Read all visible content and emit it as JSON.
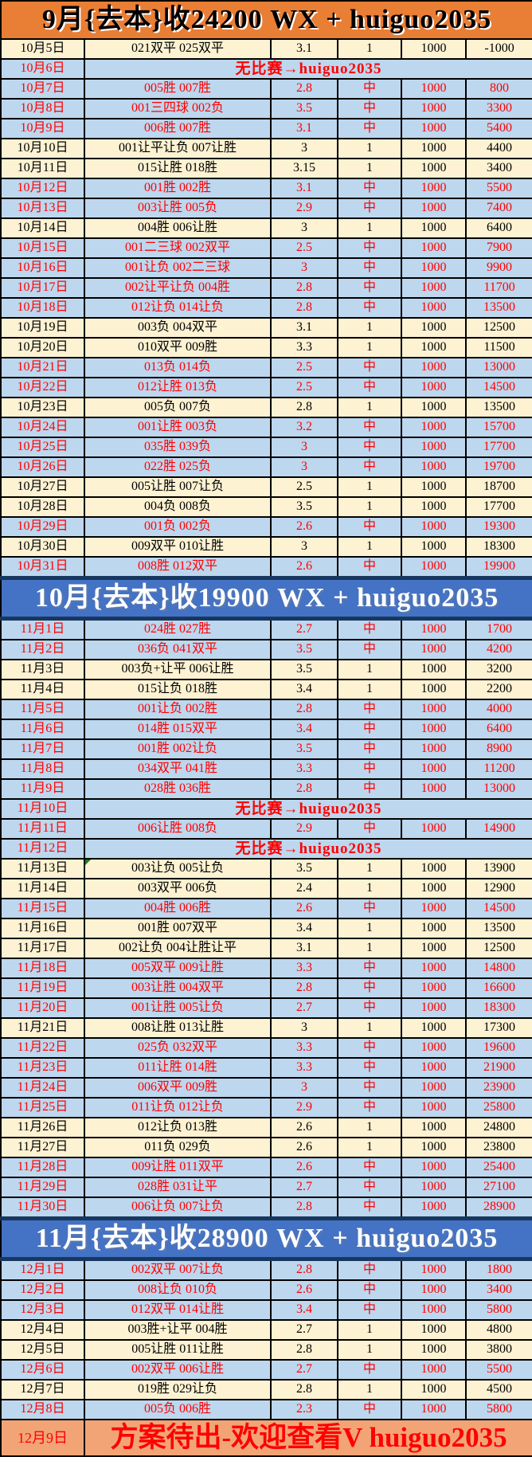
{
  "colors": {
    "header_orange_bg": "#E97E35",
    "header_blue_bg": "#4472C4",
    "header_blue_edge": "#17375E",
    "hit_row_bg": "#BDD7EE",
    "hit_text": "#FF0000",
    "miss_row_bg": "#FDF2D2",
    "miss_text": "#000000",
    "footer_bg": "#F2A477",
    "footer_text": "#FF0000",
    "border": "#000000",
    "note_marker": "#1E7B1E"
  },
  "table": {
    "columns": [
      "date",
      "picks",
      "odds",
      "result",
      "stake",
      "profit"
    ],
    "sections": [
      {
        "header": {
          "text": "9月{去本}收24200 WX + huiguo2035",
          "style": "orange"
        },
        "rows": [
          {
            "date": "10月5日",
            "picks": "021双平 025双平",
            "odds": "3.1",
            "result": "1",
            "stake": "1000",
            "profit": "-1000",
            "hit": false
          },
          {
            "date": "10月6日",
            "message": "无比赛→huiguo2035",
            "hit": true
          },
          {
            "date": "10月7日",
            "picks": "005胜 007胜",
            "odds": "2.8",
            "result": "中",
            "stake": "1000",
            "profit": "800",
            "hit": true
          },
          {
            "date": "10月8日",
            "picks": "001三四球 002负",
            "odds": "3.5",
            "result": "中",
            "stake": "1000",
            "profit": "3300",
            "hit": true
          },
          {
            "date": "10月9日",
            "picks": "006胜 007胜",
            "odds": "3.1",
            "result": "中",
            "stake": "1000",
            "profit": "5400",
            "hit": true
          },
          {
            "date": "10月10日",
            "picks": "001让平让负 007让胜",
            "odds": "3",
            "result": "1",
            "stake": "1000",
            "profit": "4400",
            "hit": false
          },
          {
            "date": "10月11日",
            "picks": "015让胜 018胜",
            "odds": "3.15",
            "result": "1",
            "stake": "1000",
            "profit": "3400",
            "hit": false
          },
          {
            "date": "10月12日",
            "picks": "001胜 002胜",
            "odds": "3.1",
            "result": "中",
            "stake": "1000",
            "profit": "5500",
            "hit": true
          },
          {
            "date": "10月13日",
            "picks": "003让胜 005负",
            "odds": "2.9",
            "result": "中",
            "stake": "1000",
            "profit": "7400",
            "hit": true
          },
          {
            "date": "10月14日",
            "picks": "004胜 006让胜",
            "odds": "3",
            "result": "1",
            "stake": "1000",
            "profit": "6400",
            "hit": false
          },
          {
            "date": "10月15日",
            "picks": "001二三球 002双平",
            "odds": "2.5",
            "result": "中",
            "stake": "1000",
            "profit": "7900",
            "hit": true
          },
          {
            "date": "10月16日",
            "picks": "001让负 002二三球",
            "odds": "3",
            "result": "中",
            "stake": "1000",
            "profit": "9900",
            "hit": true
          },
          {
            "date": "10月17日",
            "picks": "002让平让负 004胜",
            "odds": "2.8",
            "result": "中",
            "stake": "1000",
            "profit": "11700",
            "hit": true
          },
          {
            "date": "10月18日",
            "picks": "012让负 014让负",
            "odds": "2.8",
            "result": "中",
            "stake": "1000",
            "profit": "13500",
            "hit": true
          },
          {
            "date": "10月19日",
            "picks": "003负 004双平",
            "odds": "3.1",
            "result": "1",
            "stake": "1000",
            "profit": "12500",
            "hit": false
          },
          {
            "date": "10月20日",
            "picks": "010双平 009胜",
            "odds": "3.3",
            "result": "1",
            "stake": "1000",
            "profit": "11500",
            "hit": false
          },
          {
            "date": "10月21日",
            "picks": "013负 014负",
            "odds": "2.5",
            "result": "中",
            "stake": "1000",
            "profit": "13000",
            "hit": true
          },
          {
            "date": "10月22日",
            "picks": "012让胜 013负",
            "odds": "2.5",
            "result": "中",
            "stake": "1000",
            "profit": "14500",
            "hit": true
          },
          {
            "date": "10月23日",
            "picks": "005负 007负",
            "odds": "2.8",
            "result": "1",
            "stake": "1000",
            "profit": "13500",
            "hit": false
          },
          {
            "date": "10月24日",
            "picks": "001让胜 003负",
            "odds": "3.2",
            "result": "中",
            "stake": "1000",
            "profit": "15700",
            "hit": true
          },
          {
            "date": "10月25日",
            "picks": "035胜 039负",
            "odds": "3",
            "result": "中",
            "stake": "1000",
            "profit": "17700",
            "hit": true
          },
          {
            "date": "10月26日",
            "picks": "022胜 025负",
            "odds": "3",
            "result": "中",
            "stake": "1000",
            "profit": "19700",
            "hit": true
          },
          {
            "date": "10月27日",
            "picks": "005让胜 007让负",
            "odds": "2.5",
            "result": "1",
            "stake": "1000",
            "profit": "18700",
            "hit": false
          },
          {
            "date": "10月28日",
            "picks": "004负 008负",
            "odds": "3.5",
            "result": "1",
            "stake": "1000",
            "profit": "17700",
            "hit": false
          },
          {
            "date": "10月29日",
            "picks": "001负 002负",
            "odds": "2.6",
            "result": "中",
            "stake": "1000",
            "profit": "19300",
            "hit": true
          },
          {
            "date": "10月30日",
            "picks": "009双平 010让胜",
            "odds": "3",
            "result": "1",
            "stake": "1000",
            "profit": "18300",
            "hit": false
          },
          {
            "date": "10月31日",
            "picks": "008胜 012双平",
            "odds": "2.6",
            "result": "中",
            "stake": "1000",
            "profit": "19900",
            "hit": true
          }
        ]
      },
      {
        "header": {
          "text": "10月{去本}收19900 WX + huiguo2035",
          "style": "blue"
        },
        "rows": [
          {
            "date": "11月1日",
            "picks": "024胜 027胜",
            "odds": "2.7",
            "result": "中",
            "stake": "1000",
            "profit": "1700",
            "hit": true
          },
          {
            "date": "11月2日",
            "picks": "036负 041双平",
            "odds": "3.5",
            "result": "中",
            "stake": "1000",
            "profit": "4200",
            "hit": true
          },
          {
            "date": "11月3日",
            "picks": "003负+让平 006让胜",
            "odds": "3.5",
            "result": "1",
            "stake": "1000",
            "profit": "3200",
            "hit": false
          },
          {
            "date": "11月4日",
            "picks": "015让负 018胜",
            "odds": "3.4",
            "result": "1",
            "stake": "1000",
            "profit": "2200",
            "hit": false
          },
          {
            "date": "11月5日",
            "picks": "001让负 002胜",
            "odds": "2.8",
            "result": "中",
            "stake": "1000",
            "profit": "4000",
            "hit": true
          },
          {
            "date": "11月6日",
            "picks": "014胜 015双平",
            "odds": "3.4",
            "result": "中",
            "stake": "1000",
            "profit": "6400",
            "hit": true
          },
          {
            "date": "11月7日",
            "picks": "001胜 002让负",
            "odds": "3.5",
            "result": "中",
            "stake": "1000",
            "profit": "8900",
            "hit": true
          },
          {
            "date": "11月8日",
            "picks": "034双平 041胜",
            "odds": "3.3",
            "result": "中",
            "stake": "1000",
            "profit": "11200",
            "hit": true
          },
          {
            "date": "11月9日",
            "picks": "028胜 036胜",
            "odds": "2.8",
            "result": "中",
            "stake": "1000",
            "profit": "13000",
            "hit": true
          },
          {
            "date": "11月10日",
            "message": "无比赛→huiguo2035",
            "hit": true
          },
          {
            "date": "11月11日",
            "picks": "006让胜 008负",
            "odds": "2.9",
            "result": "中",
            "stake": "1000",
            "profit": "14900",
            "hit": true
          },
          {
            "date": "11月12日",
            "message": "无比赛→huiguo2035",
            "hit": true
          },
          {
            "date": "11月13日",
            "picks": "003让负 005让负",
            "odds": "3.5",
            "result": "1",
            "stake": "1000",
            "profit": "13900",
            "hit": false,
            "note": true
          },
          {
            "date": "11月14日",
            "picks": "003双平 006负",
            "odds": "2.4",
            "result": "1",
            "stake": "1000",
            "profit": "12900",
            "hit": false
          },
          {
            "date": "11月15日",
            "picks": "004胜 006胜",
            "odds": "2.6",
            "result": "中",
            "stake": "1000",
            "profit": "14500",
            "hit": true
          },
          {
            "date": "11月16日",
            "picks": "001胜 007双平",
            "odds": "3.4",
            "result": "1",
            "stake": "1000",
            "profit": "13500",
            "hit": false
          },
          {
            "date": "11月17日",
            "picks": "002让负 004让胜让平",
            "odds": "3.1",
            "result": "1",
            "stake": "1000",
            "profit": "12500",
            "hit": false
          },
          {
            "date": "11月18日",
            "picks": "005双平 009让胜",
            "odds": "3.3",
            "result": "中",
            "stake": "1000",
            "profit": "14800",
            "hit": true
          },
          {
            "date": "11月19日",
            "picks": "003让胜 004双平",
            "odds": "2.8",
            "result": "中",
            "stake": "1000",
            "profit": "16600",
            "hit": true
          },
          {
            "date": "11月20日",
            "picks": "001让胜 005让负",
            "odds": "2.7",
            "result": "中",
            "stake": "1000",
            "profit": "18300",
            "hit": true
          },
          {
            "date": "11月21日",
            "picks": "008让胜 013让胜",
            "odds": "3",
            "result": "1",
            "stake": "1000",
            "profit": "17300",
            "hit": false
          },
          {
            "date": "11月22日",
            "picks": "025负 032双平",
            "odds": "3.3",
            "result": "中",
            "stake": "1000",
            "profit": "19600",
            "hit": true
          },
          {
            "date": "11月23日",
            "picks": "011让胜 014胜",
            "odds": "3.3",
            "result": "中",
            "stake": "1000",
            "profit": "21900",
            "hit": true
          },
          {
            "date": "11月24日",
            "picks": "006双平 009胜",
            "odds": "3",
            "result": "中",
            "stake": "1000",
            "profit": "23900",
            "hit": true
          },
          {
            "date": "11月25日",
            "picks": "011让负 012让负",
            "odds": "2.9",
            "result": "中",
            "stake": "1000",
            "profit": "25800",
            "hit": true
          },
          {
            "date": "11月26日",
            "picks": "012让负 013胜",
            "odds": "2.6",
            "result": "1",
            "stake": "1000",
            "profit": "24800",
            "hit": false
          },
          {
            "date": "11月27日",
            "picks": "011负 029负",
            "odds": "2.6",
            "result": "1",
            "stake": "1000",
            "profit": "23800",
            "hit": false
          },
          {
            "date": "11月28日",
            "picks": "009让胜 011双平",
            "odds": "2.6",
            "result": "中",
            "stake": "1000",
            "profit": "25400",
            "hit": true
          },
          {
            "date": "11月29日",
            "picks": "028胜 031让平",
            "odds": "2.7",
            "result": "中",
            "stake": "1000",
            "profit": "27100",
            "hit": true
          },
          {
            "date": "11月30日",
            "picks": "006让负 007让负",
            "odds": "2.8",
            "result": "中",
            "stake": "1000",
            "profit": "28900",
            "hit": true
          }
        ]
      },
      {
        "header": {
          "text": "11月{去本}收28900 WX + huiguo2035",
          "style": "blue"
        },
        "rows": [
          {
            "date": "12月1日",
            "picks": "002双平 007让负",
            "odds": "2.8",
            "result": "中",
            "stake": "1000",
            "profit": "1800",
            "hit": true
          },
          {
            "date": "12月2日",
            "picks": "008让负 010负",
            "odds": "2.6",
            "result": "中",
            "stake": "1000",
            "profit": "3400",
            "hit": true
          },
          {
            "date": "12月3日",
            "picks": "012双平 014让胜",
            "odds": "3.4",
            "result": "中",
            "stake": "1000",
            "profit": "5800",
            "hit": true
          },
          {
            "date": "12月4日",
            "picks": "003胜+让平 004胜",
            "odds": "2.7",
            "result": "1",
            "stake": "1000",
            "profit": "4800",
            "hit": false
          },
          {
            "date": "12月5日",
            "picks": "005让胜 011让胜",
            "odds": "2.8",
            "result": "1",
            "stake": "1000",
            "profit": "3800",
            "hit": false
          },
          {
            "date": "12月6日",
            "picks": "002双平 006让胜",
            "odds": "2.7",
            "result": "中",
            "stake": "1000",
            "profit": "5500",
            "hit": true
          },
          {
            "date": "12月7日",
            "picks": "019胜 029让负",
            "odds": "2.8",
            "result": "1",
            "stake": "1000",
            "profit": "4500",
            "hit": false
          },
          {
            "date": "12月8日",
            "picks": "005负 006胜",
            "odds": "2.3",
            "result": "中",
            "stake": "1000",
            "profit": "5800",
            "hit": true
          }
        ]
      }
    ],
    "footer": {
      "date": "12月9日",
      "message": "方案待出-欢迎查看V huiguo2035"
    }
  }
}
